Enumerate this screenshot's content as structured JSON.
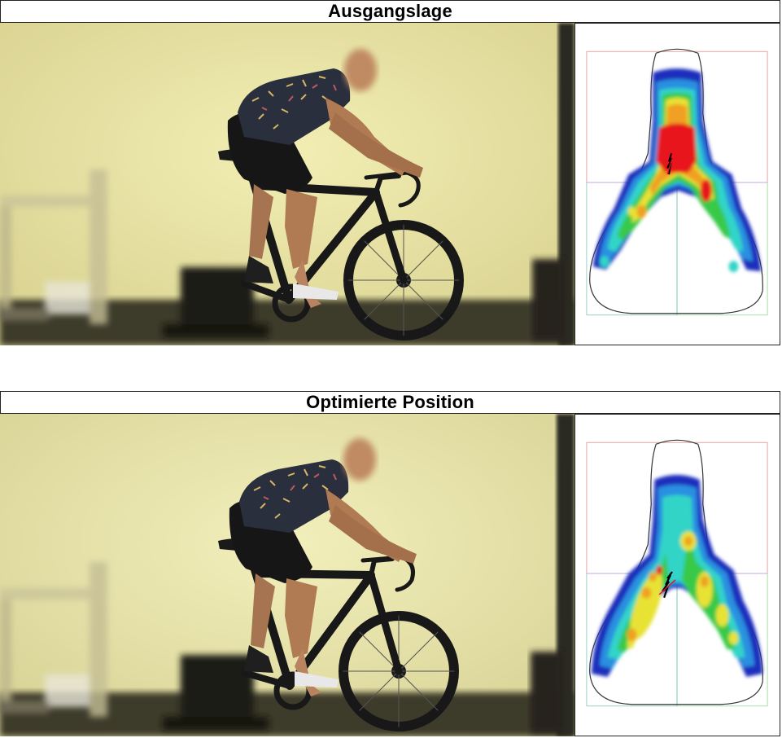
{
  "panels": [
    {
      "title": "Ausgangslage"
    },
    {
      "title": "Optimierte Position"
    }
  ]
}
